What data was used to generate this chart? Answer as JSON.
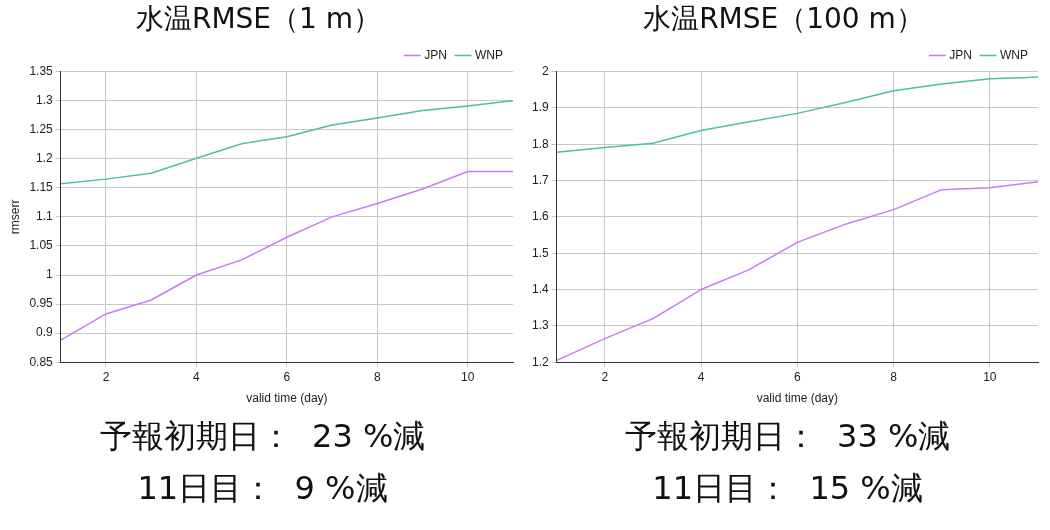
{
  "chart_data": [
    {
      "type": "line",
      "title": "水温RMSE（1 m）",
      "xlabel": "valid time (day)",
      "ylabel": "rmserr",
      "x": [
        1,
        2,
        3,
        4,
        5,
        6,
        7,
        8,
        9,
        10,
        11
      ],
      "xlim": [
        1,
        11
      ],
      "xticks": [
        2,
        4,
        6,
        8,
        10
      ],
      "ylim": [
        0.85,
        1.35
      ],
      "yticks": [
        0.85,
        0.9,
        0.95,
        1,
        1.05,
        1.1,
        1.15,
        1.2,
        1.25,
        1.3,
        1.35
      ],
      "grid": true,
      "legend": "top right",
      "marker": "none",
      "line_style": "solid",
      "series": [
        {
          "name": "JPN",
          "color": "#c77cf0",
          "values": [
            0.888,
            0.933,
            0.957,
            1.0,
            1.026,
            1.065,
            1.1,
            1.123,
            1.148,
            1.178,
            1.178
          ]
        },
        {
          "name": "WNP",
          "color": "#4fc196",
          "values": [
            1.157,
            1.165,
            1.175,
            1.201,
            1.226,
            1.238,
            1.258,
            1.27,
            1.283,
            1.291,
            1.3
          ]
        }
      ],
      "annotations": [
        "予報初期日：  23 %減",
        "11日目：  9 %減"
      ]
    },
    {
      "type": "line",
      "title": "水温RMSE（100 m）",
      "xlabel": "valid time (day)",
      "x": [
        1,
        2,
        3,
        4,
        5,
        6,
        7,
        8,
        9,
        10,
        11
      ],
      "xlim": [
        1,
        11
      ],
      "xticks": [
        2,
        4,
        6,
        8,
        10
      ],
      "ylim": [
        1.2,
        2
      ],
      "yticks": [
        1.2,
        1.3,
        1.4,
        1.5,
        1.6,
        1.7,
        1.8,
        1.9,
        2
      ],
      "grid": true,
      "legend": "top right",
      "marker": "none",
      "line_style": "solid",
      "series": [
        {
          "name": "JPN",
          "color": "#c77cf0",
          "values": [
            1.205,
            1.265,
            1.32,
            1.4,
            1.455,
            1.53,
            1.58,
            1.62,
            1.675,
            1.68,
            1.697
          ]
        },
        {
          "name": "WNP",
          "color": "#4fc196",
          "values": [
            1.778,
            1.791,
            1.803,
            1.838,
            1.862,
            1.885,
            1.915,
            1.947,
            1.966,
            1.98,
            1.985
          ]
        }
      ],
      "annotations": [
        "予報初期日：  33 %減",
        "11日目：  15 %減"
      ]
    }
  ]
}
